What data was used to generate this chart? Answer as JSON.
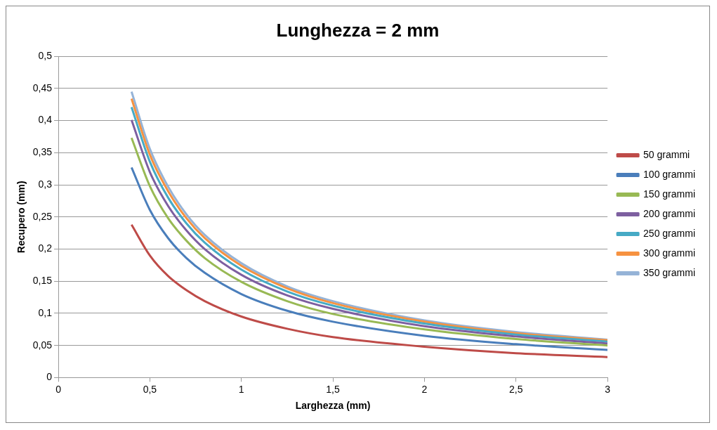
{
  "chart_data": {
    "type": "line",
    "title": "Lunghezza = 2 mm",
    "xlabel": "Larghezza (mm)",
    "ylabel": "Recupero (mm)",
    "x": [
      0.4,
      0.5,
      0.6,
      0.7,
      0.8,
      1,
      1.25,
      1.5,
      2,
      2.5,
      3
    ],
    "series": [
      {
        "name": "50 grammi",
        "color": "#be4b48",
        "values": [
          0.238,
          0.19,
          0.158,
          0.136,
          0.119,
          0.095,
          0.076,
          0.063,
          0.048,
          0.038,
          0.032
        ]
      },
      {
        "name": "100 grammi",
        "color": "#4a7ebb",
        "values": [
          0.327,
          0.261,
          0.217,
          0.186,
          0.163,
          0.13,
          0.104,
          0.087,
          0.065,
          0.052,
          0.043
        ]
      },
      {
        "name": "150 grammi",
        "color": "#98b954",
        "values": [
          0.373,
          0.298,
          0.248,
          0.213,
          0.186,
          0.149,
          0.119,
          0.099,
          0.075,
          0.06,
          0.05
        ]
      },
      {
        "name": "200 grammi",
        "color": "#7d5fa0",
        "values": [
          0.401,
          0.32,
          0.267,
          0.229,
          0.2,
          0.16,
          0.128,
          0.107,
          0.08,
          0.064,
          0.053
        ]
      },
      {
        "name": "250 grammi",
        "color": "#46aac5",
        "values": [
          0.421,
          0.336,
          0.28,
          0.24,
          0.21,
          0.168,
          0.134,
          0.112,
          0.084,
          0.067,
          0.056
        ]
      },
      {
        "name": "300 grammi",
        "color": "#f69240",
        "values": [
          0.434,
          0.347,
          0.29,
          0.248,
          0.217,
          0.174,
          0.139,
          0.116,
          0.087,
          0.069,
          0.058
        ]
      },
      {
        "name": "350 grammi",
        "color": "#95b3d7",
        "values": [
          0.445,
          0.356,
          0.297,
          0.254,
          0.222,
          0.178,
          0.142,
          0.119,
          0.089,
          0.071,
          0.059
        ]
      }
    ],
    "xlim": [
      0,
      3
    ],
    "xticks": [
      0,
      {
        "value": 0.5,
        "label": "0,5"
      },
      1,
      {
        "value": 1.5,
        "label": "1,5"
      },
      2,
      {
        "value": 2.5,
        "label": "2,5"
      },
      3
    ],
    "ylim": [
      0,
      0.5
    ],
    "yticks": [
      0,
      {
        "value": 0.05,
        "label": "0,05"
      },
      {
        "value": 0.1,
        "label": "0,1"
      },
      {
        "value": 0.15,
        "label": "0,15"
      },
      {
        "value": 0.2,
        "label": "0,2"
      },
      {
        "value": 0.25,
        "label": "0,25"
      },
      {
        "value": 0.3,
        "label": "0,3"
      },
      {
        "value": 0.35,
        "label": "0,35"
      },
      {
        "value": 0.4,
        "label": "0,4"
      },
      {
        "value": 0.45,
        "label": "0,45"
      },
      {
        "value": 0.5,
        "label": "0,5"
      }
    ],
    "grid": "y",
    "legend": "right",
    "marker": "none",
    "line_style": "solid"
  }
}
